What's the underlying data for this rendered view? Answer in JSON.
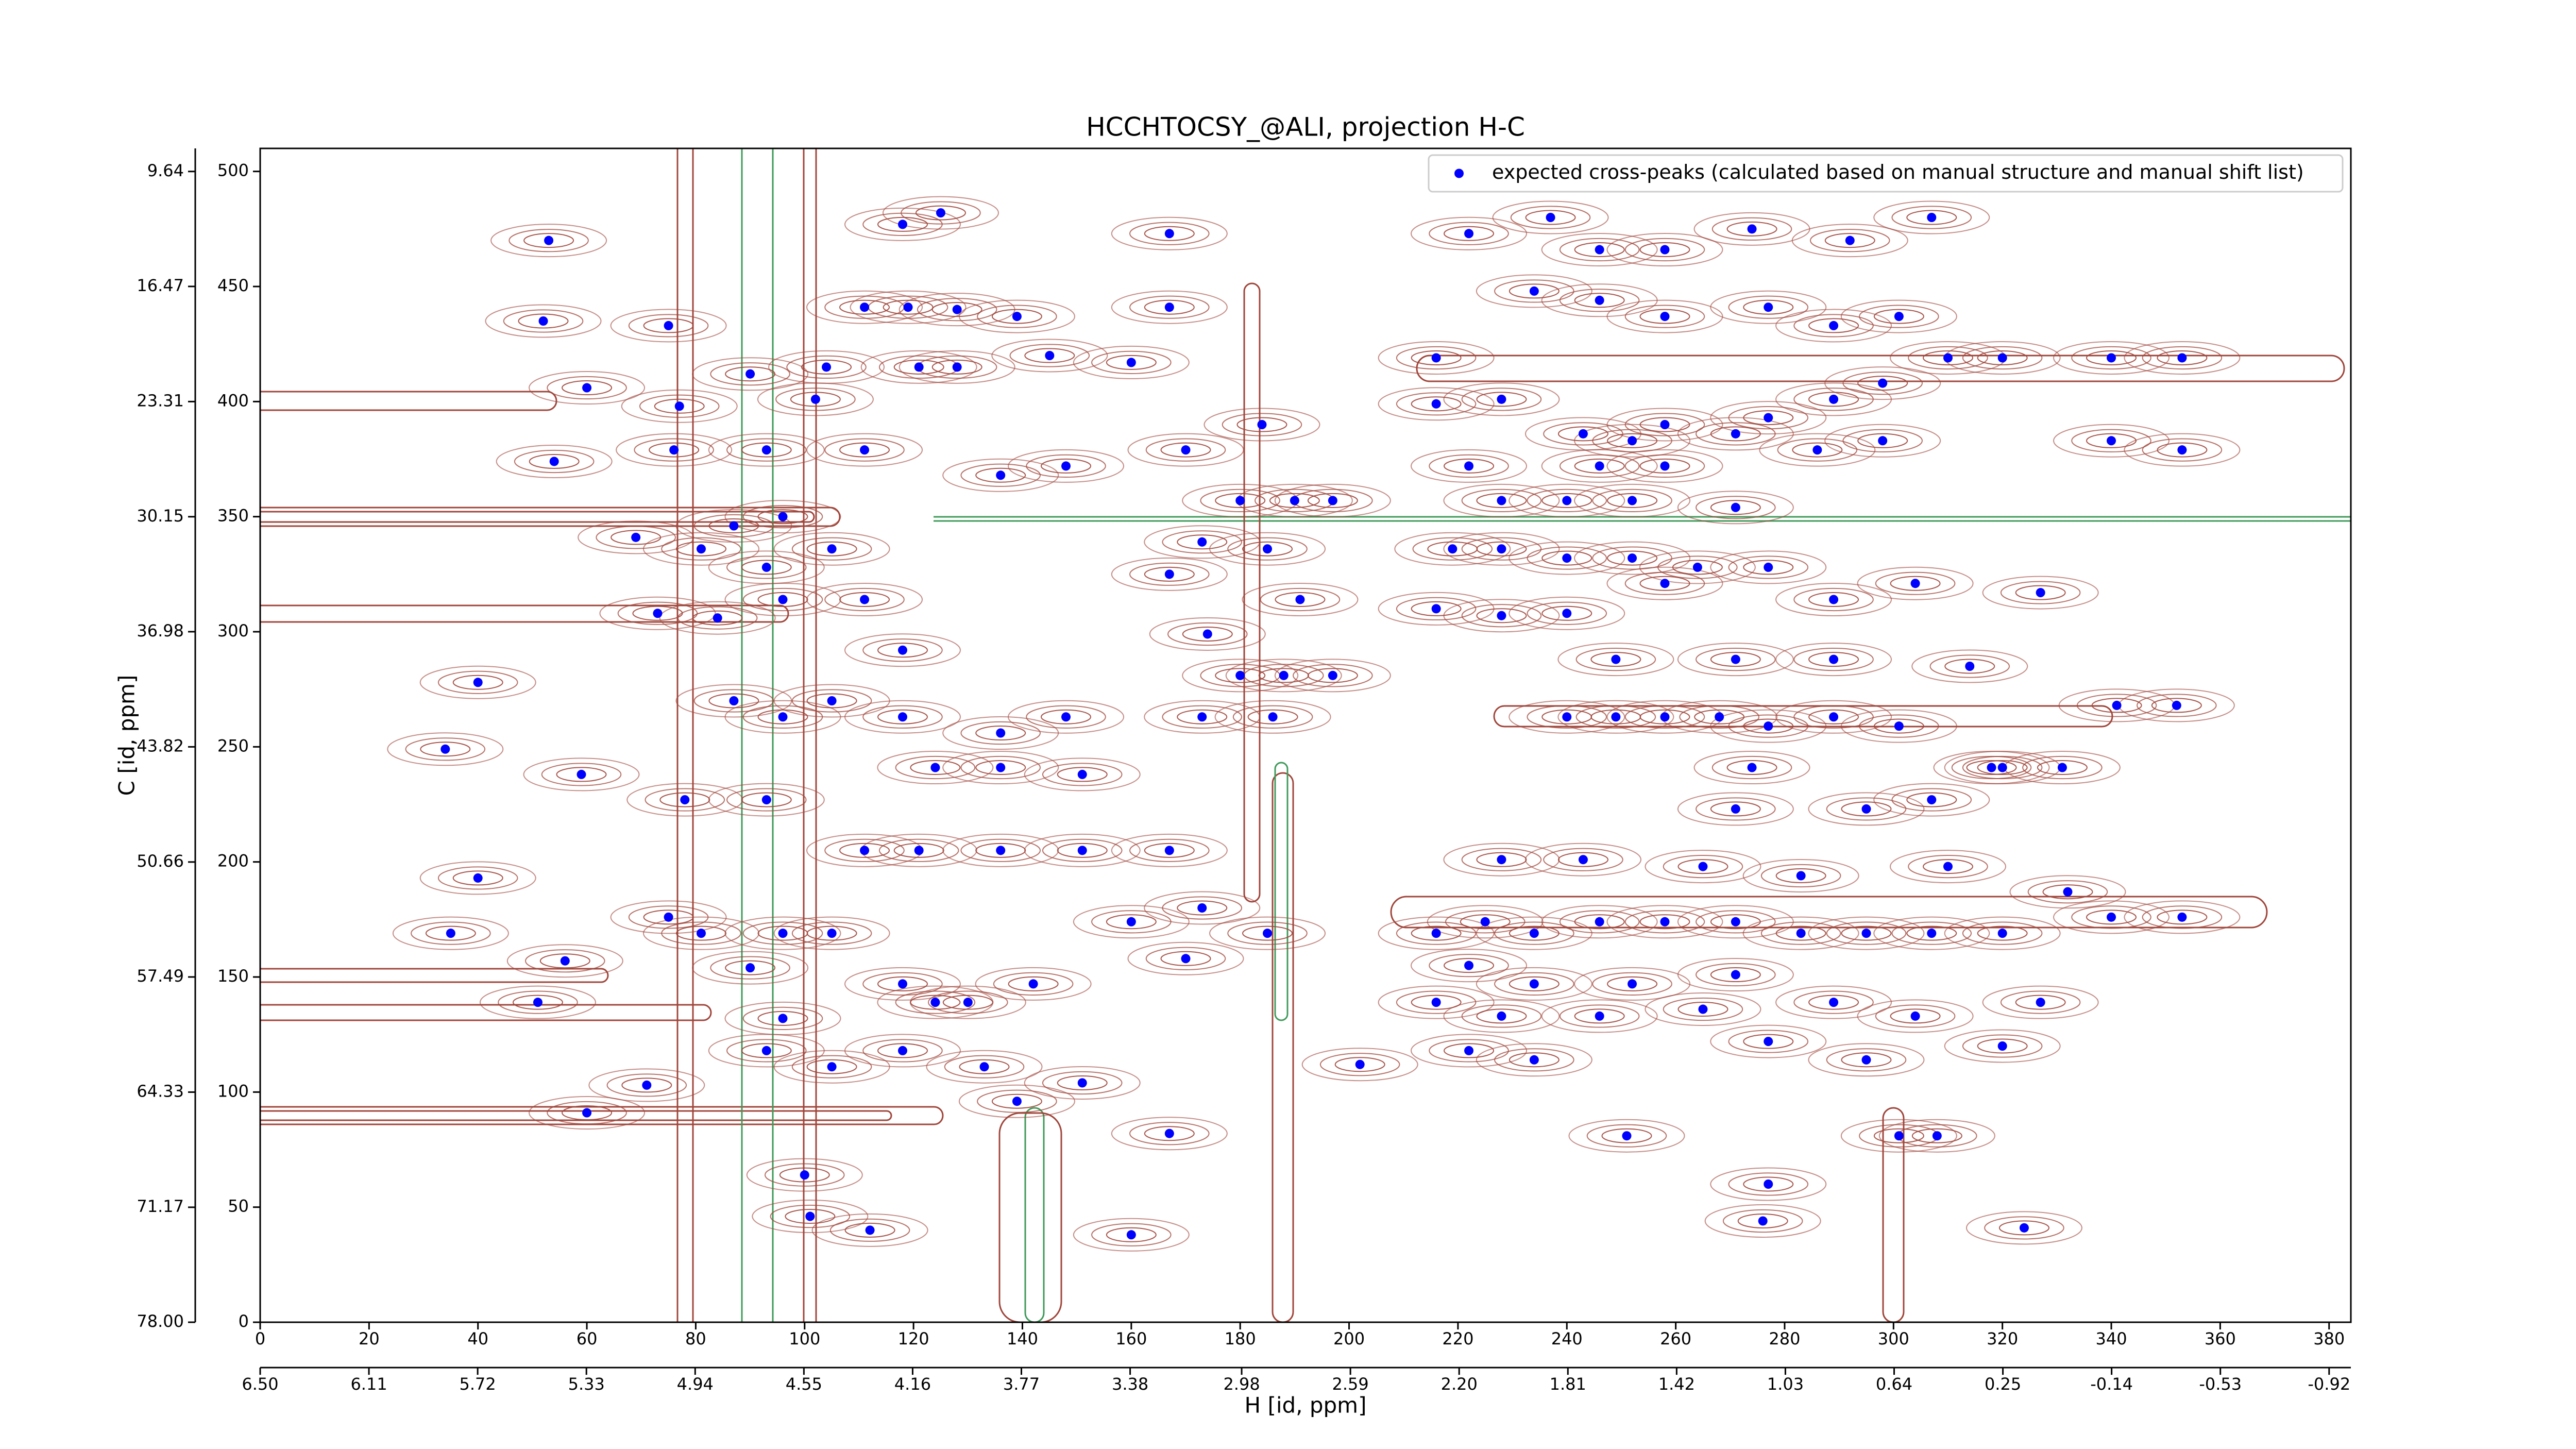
{
  "chart_data": {
    "type": "scatter",
    "title": "HCCHTOCSY_@ALI, projection H-C",
    "xlabel": "H [id, ppm]",
    "ylabel": "C [id, ppm]",
    "legend": "upper right",
    "xlim": [
      0,
      384
    ],
    "xticks": [
      0,
      20,
      40,
      60,
      80,
      100,
      120,
      140,
      160,
      180,
      200,
      220,
      240,
      260,
      280,
      300,
      320,
      340,
      360,
      380
    ],
    "x2lim": [
      6.5,
      -0.998
    ],
    "x2ticks": [
      {
        "value": 6.5,
        "label": "6.50"
      },
      6.11,
      5.72,
      5.33,
      4.94,
      4.55,
      4.16,
      3.77,
      3.38,
      2.98,
      2.59,
      {
        "value": 2.2,
        "label": "2.20"
      },
      1.81,
      1.42,
      1.03,
      0.64,
      0.25,
      -0.14,
      -0.53,
      -0.92
    ],
    "ylim": [
      0,
      510
    ],
    "yticks": [
      0,
      50,
      100,
      150,
      200,
      250,
      300,
      350,
      400,
      450,
      500
    ],
    "y2lim": [
      78,
      8.27
    ],
    "y2ticks": [
      {
        "value": 78,
        "label": "78.00"
      },
      71.17,
      64.33,
      57.49,
      50.66,
      43.82,
      36.98,
      30.15,
      23.31,
      16.47,
      9.64
    ],
    "series": [
      {
        "name": "expected cross-peaks (calculated based on manual structure and manual shift list)",
        "color": "#0000ff",
        "x": [
          53,
          52,
          60,
          54,
          77,
          76,
          75,
          69,
          73,
          40,
          34,
          59,
          35,
          40,
          56,
          51,
          60,
          71,
          100,
          101,
          112,
          160,
          167,
          167,
          167,
          160,
          145,
          125,
          118,
          111,
          119,
          128,
          139,
          104,
          121,
          128,
          90,
          102,
          93,
          111,
          136,
          148,
          170,
          184,
          180,
          190,
          197,
          173,
          185,
          167,
          191,
          174,
          180,
          188,
          197,
          186,
          173,
          148,
          136,
          124,
          136,
          151,
          118,
          118,
          111,
          96,
          93,
          105,
          96,
          87,
          81,
          84,
          87,
          96,
          105,
          78,
          93,
          111,
          121,
          136,
          151,
          167,
          173,
          185,
          170,
          160,
          142,
          130,
          118,
          105,
          96,
          90,
          93,
          105,
          118,
          133,
          139,
          151,
          124,
          96,
          81,
          75,
          222,
          237,
          246,
          258,
          274,
          292,
          307,
          234,
          246,
          258,
          277,
          289,
          301,
          310,
          320,
          298,
          289,
          277,
          271,
          258,
          252,
          243,
          246,
          258,
          286,
          298,
          340,
          353,
          340,
          353,
          216,
          228,
          216,
          222,
          228,
          240,
          252,
          271,
          219,
          228,
          240,
          252,
          264,
          216,
          228,
          240,
          258,
          277,
          289,
          304,
          327,
          240,
          249,
          258,
          268,
          277,
          289,
          301,
          289,
          314,
          271,
          249,
          320,
          331,
          341,
          352,
          274,
          295,
          307,
          271,
          228,
          243,
          265,
          283,
          310,
          332,
          340,
          353,
          216,
          225,
          234,
          246,
          258,
          271,
          283,
          295,
          307,
          320,
          222,
          234,
          252,
          271,
          216,
          228,
          246,
          265,
          289,
          304,
          327,
          222,
          234,
          277,
          295,
          320,
          202,
          251,
          301,
          308,
          277,
          276,
          324,
          318
        ],
        "y": [
          470,
          435,
          406,
          374,
          398,
          379,
          433,
          341,
          308,
          278,
          249,
          238,
          169,
          193,
          157,
          139,
          91,
          103,
          64,
          46,
          40,
          38,
          82,
          473,
          441,
          417,
          420,
          482,
          477,
          441,
          441,
          440,
          437,
          415,
          415,
          415,
          412,
          401,
          379,
          379,
          368,
          372,
          379,
          390,
          357,
          357,
          357,
          339,
          336,
          325,
          314,
          299,
          281,
          281,
          281,
          263,
          263,
          263,
          256,
          241,
          241,
          238,
          263,
          292,
          314,
          314,
          328,
          336,
          350,
          346,
          336,
          306,
          270,
          263,
          270,
          227,
          227,
          205,
          205,
          205,
          205,
          205,
          180,
          169,
          158,
          174,
          147,
          139,
          147,
          169,
          169,
          154,
          118,
          111,
          118,
          111,
          96,
          104,
          139,
          132,
          169,
          176,
          473,
          480,
          466,
          466,
          475,
          470,
          480,
          448,
          444,
          437,
          441,
          433,
          437,
          419,
          419,
          408,
          401,
          393,
          386,
          390,
          383,
          386,
          372,
          372,
          379,
          383,
          383,
          379,
          419,
          419,
          419,
          401,
          399,
          372,
          357,
          357,
          357,
          354,
          336,
          336,
          332,
          332,
          328,
          310,
          307,
          308,
          321,
          328,
          314,
          321,
          317,
          263,
          263,
          263,
          263,
          259,
          263,
          259,
          288,
          285,
          288,
          288,
          241,
          241,
          268,
          268,
          241,
          223,
          227,
          223,
          201,
          201,
          198,
          194,
          198,
          187,
          176,
          176,
          169,
          174,
          169,
          174,
          174,
          174,
          169,
          169,
          169,
          169,
          155,
          147,
          147,
          151,
          139,
          133,
          133,
          136,
          139,
          133,
          139,
          118,
          114,
          122,
          114,
          120,
          112,
          81,
          81,
          81,
          60,
          44,
          41,
          241
        ]
      }
    ]
  }
}
